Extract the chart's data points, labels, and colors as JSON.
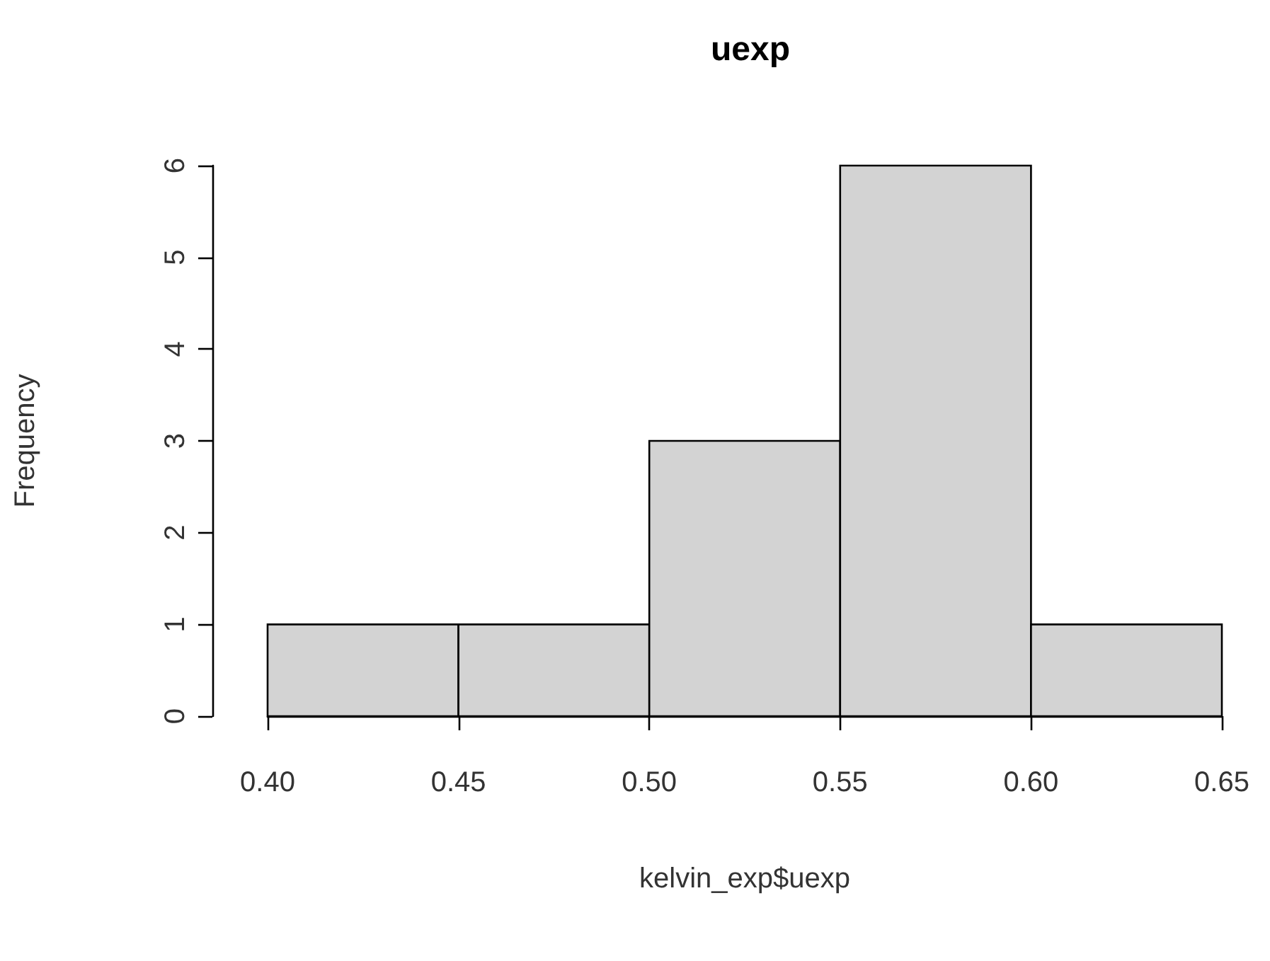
{
  "chart_data": {
    "type": "histogram",
    "title": "uexp",
    "xlabel": "kelvin_exp$uexp",
    "ylabel": "Frequency",
    "bins": [
      0.4,
      0.45,
      0.5,
      0.55,
      0.6,
      0.65
    ],
    "values": [
      1,
      1,
      3,
      6,
      1
    ],
    "color": "#d3d3d3",
    "xlim": [
      0.4,
      0.65
    ],
    "xticks": [
      {
        "value": 0.4,
        "label": "0.40"
      },
      {
        "value": 0.45,
        "label": "0.45"
      },
      {
        "value": 0.5,
        "label": "0.50"
      },
      {
        "value": 0.55,
        "label": "0.55"
      },
      {
        "value": 0.6,
        "label": "0.60"
      },
      {
        "value": 0.65,
        "label": "0.65"
      }
    ],
    "ylim": [
      0,
      6
    ],
    "yticks": [
      0,
      1,
      2,
      3,
      4,
      5,
      6
    ]
  }
}
